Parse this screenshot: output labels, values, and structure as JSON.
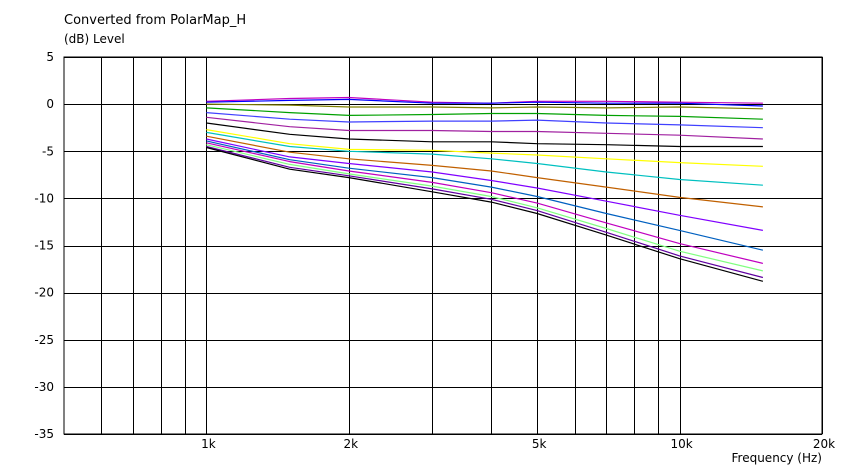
{
  "chart_data": {
    "type": "line",
    "title": "Converted from PolarMap_H",
    "ylabel": "(dB)  Level",
    "xlabel": "Frequency  (Hz)",
    "x_scale": "log",
    "xlim": [
      500,
      20000
    ],
    "ylim": [
      -35,
      5
    ],
    "y_ticks": [
      5,
      0,
      -5,
      -10,
      -15,
      -20,
      -25,
      -30,
      -35
    ],
    "x_tick_labels": [
      {
        "value": 1000,
        "label": "1k"
      },
      {
        "value": 2000,
        "label": "2k"
      },
      {
        "value": 5000,
        "label": "5k"
      },
      {
        "value": 10000,
        "label": "10k"
      },
      {
        "value": 20000,
        "label": "20k"
      }
    ],
    "x_gridlines": [
      600,
      700,
      800,
      900,
      1000,
      2000,
      3000,
      4000,
      5000,
      6000,
      7000,
      8000,
      9000,
      10000,
      20000
    ],
    "grid": true,
    "x": [
      1000,
      1500,
      2000,
      3000,
      4000,
      5000,
      7000,
      10000,
      15000
    ],
    "series": [
      {
        "color": "#c000c0",
        "values": [
          0.3,
          0.6,
          0.7,
          0.2,
          0.1,
          0.3,
          0.3,
          0.2,
          0.1
        ]
      },
      {
        "color": "#0000ff",
        "values": [
          0.2,
          0.4,
          0.5,
          0.1,
          0.1,
          0.2,
          0.1,
          0.1,
          -0.2
        ]
      },
      {
        "color": "#808000",
        "values": [
          0.0,
          -0.1,
          -0.3,
          -0.3,
          -0.4,
          -0.3,
          -0.4,
          -0.3,
          -0.5
        ]
      },
      {
        "color": "#00a000",
        "values": [
          -0.4,
          -0.9,
          -1.2,
          -1.1,
          -1.0,
          -1.0,
          -1.2,
          -1.3,
          -1.6
        ]
      },
      {
        "color": "#4040ff",
        "values": [
          -0.9,
          -1.6,
          -1.9,
          -1.8,
          -1.8,
          -1.7,
          -2.0,
          -2.2,
          -2.5
        ]
      },
      {
        "color": "#a020a0",
        "values": [
          -1.4,
          -2.4,
          -2.8,
          -2.8,
          -2.9,
          -2.9,
          -3.1,
          -3.3,
          -3.7
        ]
      },
      {
        "color": "#000000",
        "values": [
          -2.0,
          -3.2,
          -3.7,
          -4.0,
          -4.0,
          -4.2,
          -4.3,
          -4.5,
          -4.5
        ]
      },
      {
        "color": "#ffff00",
        "values": [
          -2.7,
          -4.2,
          -4.8,
          -4.9,
          -5.2,
          -5.4,
          -5.8,
          -6.2,
          -6.6
        ]
      },
      {
        "color": "#00c0c0",
        "values": [
          -3.0,
          -4.5,
          -5.0,
          -5.3,
          -5.8,
          -6.3,
          -7.2,
          -8.0,
          -8.6
        ]
      },
      {
        "color": "#c06000",
        "values": [
          -3.4,
          -5.1,
          -5.8,
          -6.5,
          -7.1,
          -7.8,
          -8.8,
          -9.9,
          -10.9
        ]
      },
      {
        "color": "#8000ff",
        "values": [
          -3.7,
          -5.6,
          -6.3,
          -7.2,
          -8.1,
          -8.9,
          -10.3,
          -11.8,
          -13.4
        ]
      },
      {
        "color": "#0060c0",
        "values": [
          -3.9,
          -5.9,
          -6.8,
          -7.8,
          -8.8,
          -9.8,
          -11.6,
          -13.4,
          -15.5
        ]
      },
      {
        "color": "#c000c0",
        "values": [
          -4.1,
          -6.1,
          -7.1,
          -8.3,
          -9.4,
          -10.5,
          -12.6,
          -14.8,
          -16.9
        ]
      },
      {
        "color": "#80ff80",
        "values": [
          -4.3,
          -6.4,
          -7.4,
          -8.7,
          -9.8,
          -11.0,
          -13.2,
          -15.6,
          -17.7
        ]
      },
      {
        "color": "#6000a0",
        "values": [
          -4.5,
          -6.7,
          -7.6,
          -9.0,
          -10.1,
          -11.3,
          -13.6,
          -16.1,
          -18.4
        ]
      },
      {
        "color": "#000000",
        "values": [
          -4.6,
          -6.9,
          -7.8,
          -9.3,
          -10.4,
          -11.6,
          -13.9,
          -16.4,
          -18.8
        ]
      }
    ]
  }
}
